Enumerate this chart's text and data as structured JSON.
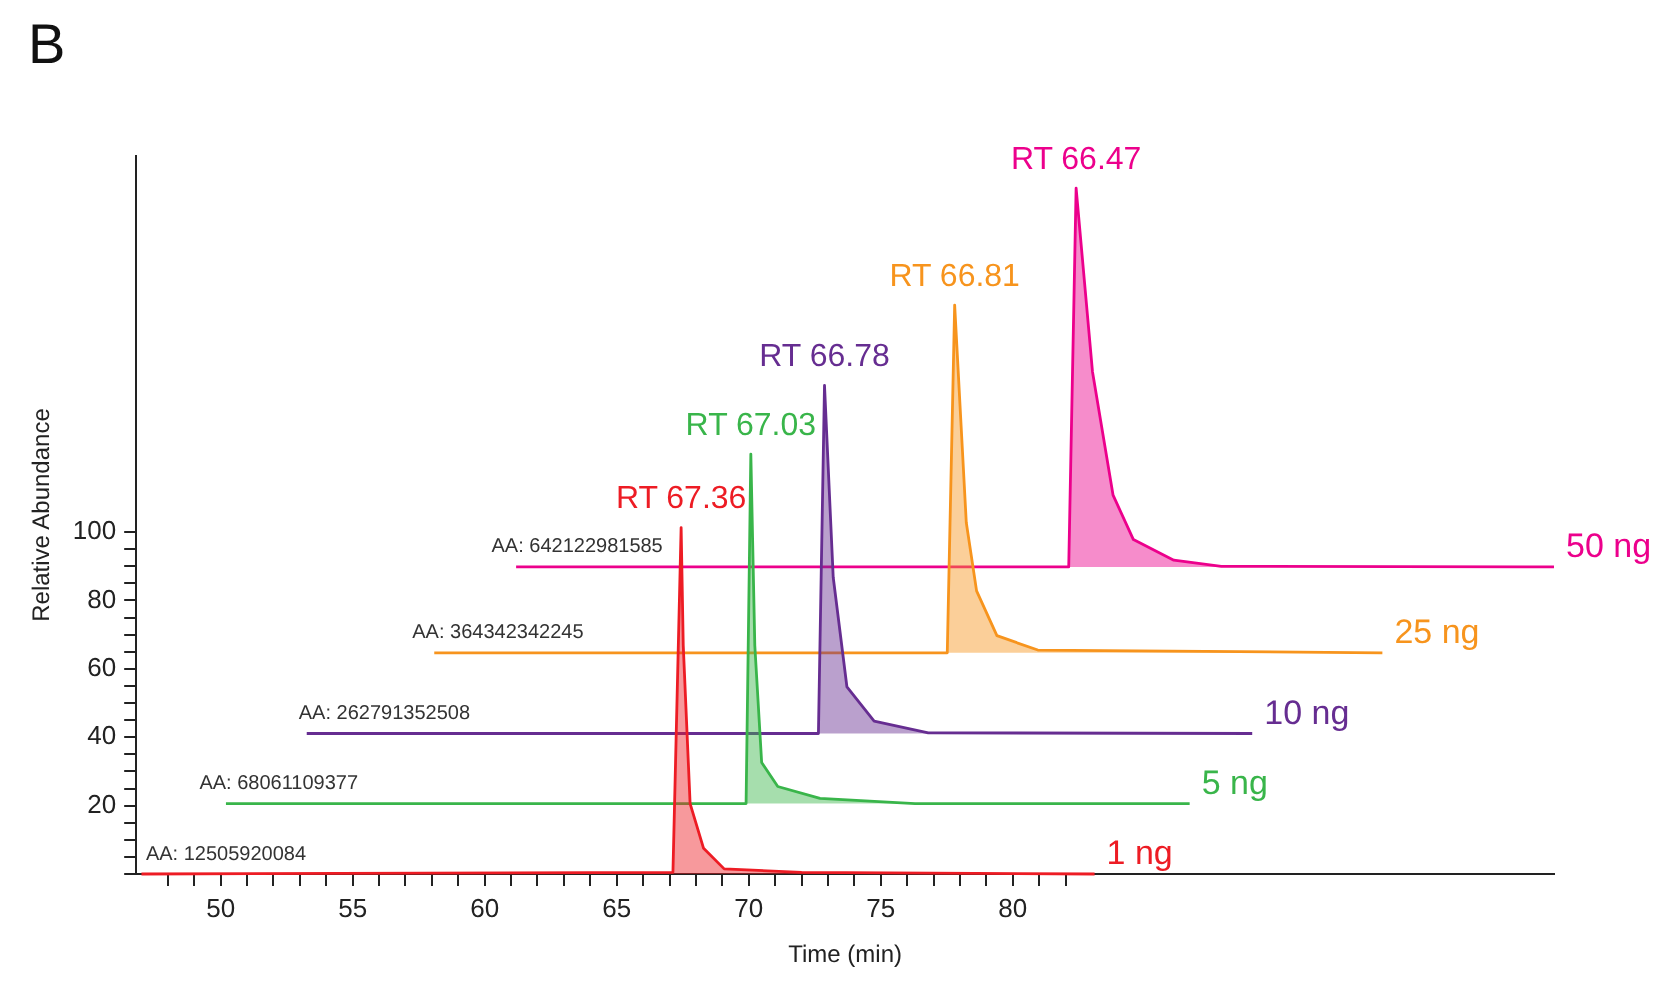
{
  "chart_data": {
    "type": "line",
    "xlabel": "Time (min)",
    "ylabel": "Relative Abundance",
    "annotations": [
      "B",
      {
        "text": "AA: 12505920084",
        "x": 50.2,
        "y": 0
      },
      {
        "text": "AA: 68061109377",
        "x": 52.2,
        "y": 20.6
      },
      {
        "text": "AA: 262791352508",
        "x": 56.2,
        "y": 41.1
      },
      {
        "text": "AA: 364342342245",
        "x": 60.5,
        "y": 64.7
      },
      {
        "text": "AA: 642122981585",
        "x": 63.5,
        "y": 89.8
      }
    ],
    "series": [
      {
        "name": "1 ng",
        "color": "#ed1c24",
        "x": [
          47.0,
          67.13,
          67.44,
          67.52,
          67.78,
          68.29,
          69.07,
          72.0,
          83.1
        ],
        "values": [
          0,
          0.5,
          101.3,
          66.9,
          20.6,
          7.5,
          1.5,
          0.5,
          0
        ],
        "value_labels": [
          null,
          null,
          "RT 67.36",
          null,
          null,
          null,
          null,
          null,
          null
        ]
      },
      {
        "name": "5 ng",
        "color": "#39b54a",
        "x": [
          50.2,
          69.9,
          70.08,
          70.23,
          70.49,
          71.1,
          72.7,
          76.3,
          86.7
        ],
        "values": [
          20.6,
          20.6,
          122.8,
          66.9,
          32.6,
          25.6,
          22.1,
          20.6,
          20.6
        ],
        "value_labels": [
          null,
          null,
          "RT 67.03",
          null,
          null,
          null,
          null,
          null,
          null
        ]
      },
      {
        "name": "10 ng",
        "color": "#662d91",
        "x": [
          53.26,
          72.64,
          72.87,
          73.2,
          73.72,
          74.75,
          76.8,
          89.07
        ],
        "values": [
          41.1,
          41.1,
          142.9,
          86.8,
          54.7,
          44.7,
          41.3,
          41.1
        ],
        "value_labels": [
          null,
          null,
          "RT 66.78",
          null,
          null,
          null,
          null,
          null
        ]
      },
      {
        "name": "25 ng",
        "color": "#f7941d",
        "x": [
          58.09,
          77.52,
          77.8,
          78.24,
          78.63,
          79.4,
          80.95,
          94.0
        ],
        "values": [
          64.7,
          64.7,
          166.4,
          102.8,
          82.8,
          69.7,
          65.5,
          64.7
        ],
        "value_labels": [
          null,
          null,
          "RT 66.81",
          null,
          null,
          null,
          null,
          null
        ]
      },
      {
        "name": "50 ng",
        "color": "#ec008c",
        "x": [
          61.19,
          82.12,
          82.4,
          83.02,
          83.8,
          84.57,
          86.1,
          87.9,
          100.5
        ],
        "values": [
          89.8,
          89.8,
          200.6,
          146.9,
          110.8,
          97.8,
          91.8,
          90,
          89.8
        ],
        "value_labels": [
          null,
          null,
          "RT 66.47",
          null,
          null,
          null,
          null,
          null,
          null
        ]
      }
    ],
    "xlim": [
      46.8,
      100.5
    ],
    "xticks": [
      {
        "value": 48,
        "label": null
      },
      {
        "value": 49,
        "label": null
      },
      50,
      {
        "value": 51,
        "label": null
      },
      {
        "value": 52,
        "label": null
      },
      {
        "value": 53,
        "label": null
      },
      {
        "value": 54,
        "label": null
      },
      55,
      {
        "value": 56,
        "label": null
      },
      {
        "value": 57,
        "label": null
      },
      {
        "value": 58,
        "label": null
      },
      {
        "value": 59,
        "label": null
      },
      60,
      {
        "value": 61,
        "label": null
      },
      {
        "value": 62,
        "label": null
      },
      {
        "value": 63,
        "label": null
      },
      {
        "value": 64,
        "label": null
      },
      65,
      {
        "value": 66,
        "label": null
      },
      {
        "value": 67,
        "label": null
      },
      {
        "value": 68,
        "label": null
      },
      {
        "value": 69,
        "label": null
      },
      70,
      {
        "value": 71,
        "label": null
      },
      {
        "value": 72,
        "label": null
      },
      {
        "value": 73,
        "label": null
      },
      {
        "value": 74,
        "label": null
      },
      75,
      {
        "value": 76,
        "label": null
      },
      {
        "value": 77,
        "label": null
      },
      {
        "value": 78,
        "label": null
      },
      {
        "value": 79,
        "label": null
      },
      80,
      {
        "value": 81,
        "label": null
      },
      {
        "value": 82,
        "label": null
      }
    ],
    "ylim": [
      0,
      210
    ],
    "yticks": [
      {
        "value": 0,
        "label": null
      },
      {
        "value": 5,
        "label": null
      },
      {
        "value": 10,
        "label": null
      },
      {
        "value": 15,
        "label": null
      },
      20,
      {
        "value": 25,
        "label": null
      },
      {
        "value": 30,
        "label": null
      },
      {
        "value": 35,
        "label": null
      },
      40,
      {
        "value": 45,
        "label": null
      },
      {
        "value": 50,
        "label": null
      },
      {
        "value": 55,
        "label": null
      },
      60,
      {
        "value": 65,
        "label": null
      },
      {
        "value": 70,
        "label": null
      },
      {
        "value": 75,
        "label": null
      },
      80,
      {
        "value": 85,
        "label": null
      },
      {
        "value": 90,
        "label": null
      },
      {
        "value": 95,
        "label": null
      },
      100
    ],
    "grid": false,
    "legend": false,
    "marker": "none",
    "line_style": "solid"
  }
}
